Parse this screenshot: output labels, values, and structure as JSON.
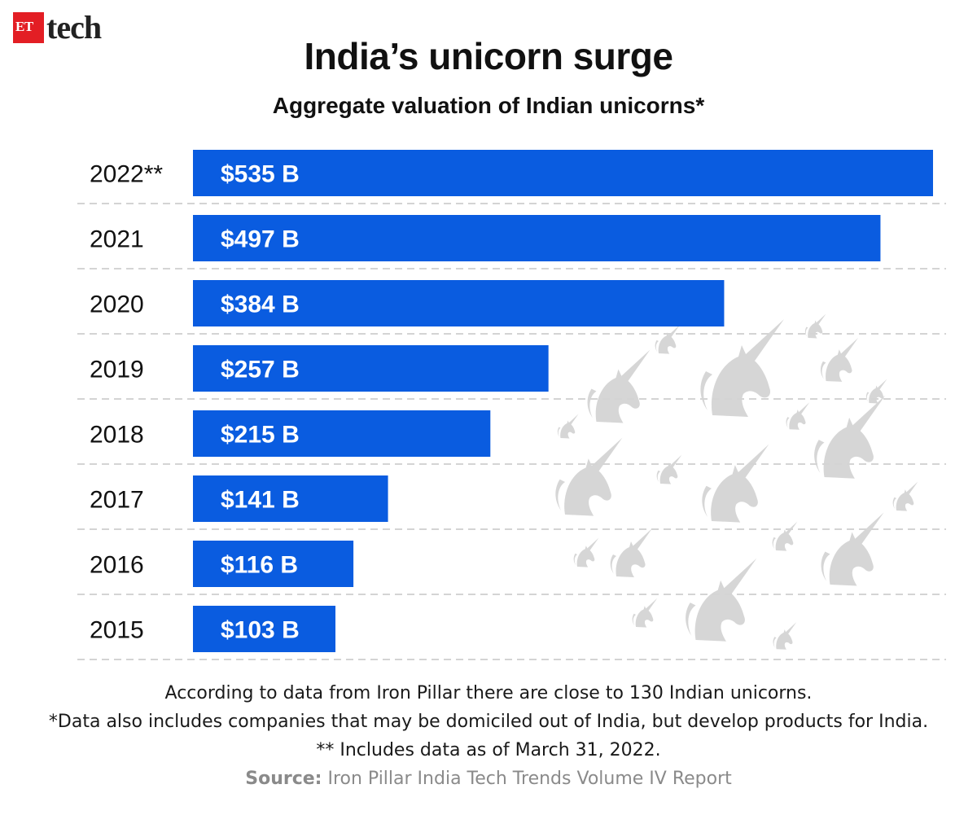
{
  "brand": {
    "badge": "ET",
    "word": "tech"
  },
  "chart_data": {
    "type": "bar",
    "orientation": "horizontal",
    "title": "India’s unicorn surge",
    "subtitle": "Aggregate valuation of Indian unicorns*",
    "categories": [
      "2022**",
      "2021",
      "2020",
      "2019",
      "2018",
      "2017",
      "2016",
      "2015"
    ],
    "values": [
      535,
      497,
      384,
      257,
      215,
      141,
      116,
      103
    ],
    "data_labels": [
      "$535 B",
      "$497 B",
      "$384 B",
      "$257 B",
      "$215 B",
      "$141 B",
      "$116 B",
      "$103 B"
    ],
    "unit": "$ billion",
    "xlim": [
      0,
      535
    ],
    "bar_color": "#0a5ce0",
    "grid": "dashed horizontal separators",
    "legend": "none"
  },
  "notes": {
    "line1": "According to data from Iron Pillar there are close to 130 Indian unicorns.",
    "line2": "*Data also includes companies that may be domiciled out of India, but develop products for India.",
    "line3": "** Includes data as of March 31, 2022.",
    "source_label": "Source:",
    "source_text": "Iron Pillar India Tech Trends Volume IV Report"
  }
}
